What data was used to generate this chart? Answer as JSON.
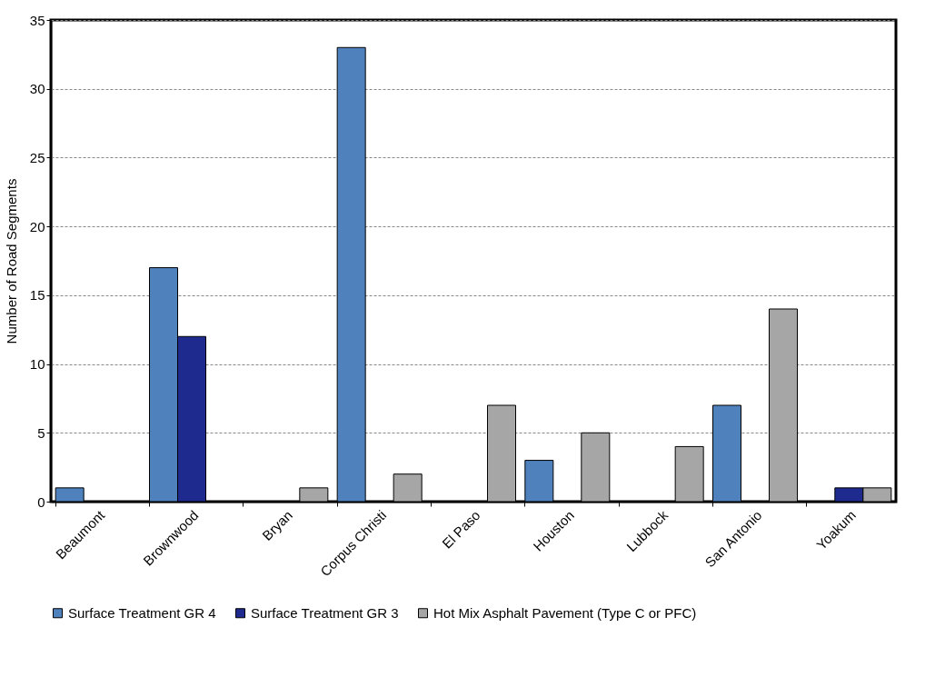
{
  "chart_data": {
    "type": "bar",
    "ylabel": "Number of Road Segments",
    "categories": [
      "Beaumont",
      "Brownwood",
      "Bryan",
      "Corpus Christi",
      "El Paso",
      "Houston",
      "Lubbock",
      "San Antonio",
      "Yoakum"
    ],
    "series": [
      {
        "name": "Surface Treatment  GR 4",
        "color": "#4f81bd",
        "values": [
          1,
          17,
          null,
          33,
          null,
          3,
          null,
          7,
          null
        ]
      },
      {
        "name": "Surface Treatment  GR 3",
        "color": "#1f2a8f",
        "values": [
          null,
          12,
          null,
          null,
          null,
          null,
          null,
          null,
          1
        ]
      },
      {
        "name": "Hot Mix Asphalt Pavement  (Type C or PFC)",
        "color": "#a6a6a6",
        "values": [
          null,
          null,
          1,
          2,
          7,
          5,
          4,
          14,
          1
        ]
      }
    ],
    "ylim": [
      0,
      35
    ],
    "yticks": [
      0,
      5,
      10,
      15,
      20,
      25,
      30,
      35
    ],
    "grid": "y",
    "legend": "bottom"
  }
}
